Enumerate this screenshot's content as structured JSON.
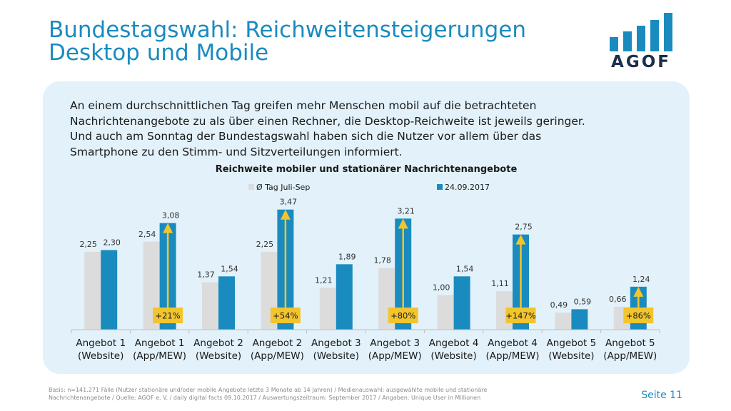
{
  "header": {
    "title_line1": "Bundestagswahl: Reichweitensteigerungen",
    "title_line2": "Desktop und Mobile",
    "logo_text": "AGOF",
    "logo_color": "#1a8bbf"
  },
  "intro": {
    "line1": "An einem durchschnittlichen Tag greifen mehr Menschen mobil auf die betrachteten",
    "line2": "Nachrichtenangebote zu als über einen Rechner, die Desktop-Reichweite ist jeweils geringer.",
    "line3": "Und auch am Sonntag der Bundestagswahl haben sich die Nutzer vor allem über das",
    "line4": "Smartphone zu den Stimm- und Sitzverteilungen informiert."
  },
  "chart_data": {
    "type": "bar",
    "title": "Reichweite mobiler und stationärer Nachrichtenangebote",
    "legend_position": "top",
    "ylim": [
      0,
      4
    ],
    "categories": [
      [
        "Angebot 1",
        "(Website)"
      ],
      [
        "Angebot 1",
        "(App/MEW)"
      ],
      [
        "Angebot 2",
        "(Website)"
      ],
      [
        "Angebot 2",
        "(App/MEW)"
      ],
      [
        "Angebot 3",
        "(Website)"
      ],
      [
        "Angebot 3",
        "(App/MEW)"
      ],
      [
        "Angebot 4",
        "(Website)"
      ],
      [
        "Angebot 4",
        "(App/MEW)"
      ],
      [
        "Angebot 5",
        "(Website)"
      ],
      [
        "Angebot 5",
        "(App/MEW)"
      ]
    ],
    "series": [
      {
        "name": "Ø Tag Juli-Sep",
        "color": "#dcdcdc",
        "values": [
          2.25,
          2.54,
          1.37,
          2.25,
          1.21,
          1.78,
          1.0,
          1.11,
          0.49,
          0.66
        ],
        "labels": [
          "2,25",
          "2,54",
          "1,37",
          "2,25",
          "1,21",
          "1,78",
          "1,00",
          "1,11",
          "0,49",
          "0,66"
        ]
      },
      {
        "name": "24.09.2017",
        "color": "#1a8bbf",
        "values": [
          2.3,
          3.08,
          1.54,
          3.47,
          1.89,
          3.21,
          1.54,
          2.75,
          0.59,
          1.24
        ],
        "labels": [
          "2,30",
          "3,08",
          "1,54",
          "3,47",
          "1,89",
          "3,21",
          "1,54",
          "2,75",
          "0,59",
          "1,24"
        ]
      }
    ],
    "annotations": [
      {
        "category_index": 1,
        "label": "+21%",
        "value": 3.08
      },
      {
        "category_index": 3,
        "label": "+54%",
        "value": 3.47
      },
      {
        "category_index": 5,
        "label": "+80%",
        "value": 3.21
      },
      {
        "category_index": 7,
        "label": "+147%",
        "value": 2.75
      },
      {
        "category_index": 9,
        "label": "+86%",
        "value": 1.24
      }
    ],
    "annotation_color": "#f2c52e"
  },
  "footer": {
    "line1": "Basis: n=141.271 Fälle (Nutzer stationäre und/oder mobile Angebote letzte 3 Monate ab 14 Jahren) / Medienauswahl: ausgewählte  mobile und stationäre",
    "line2": "Nachrichtenangebote / Quelle: AGOF e. V. / daily digital facts 09.10.2017 / Auswertungszeitraum: September 2017 / Angaben: Unique User in Millionen",
    "page": "Seite 11"
  }
}
